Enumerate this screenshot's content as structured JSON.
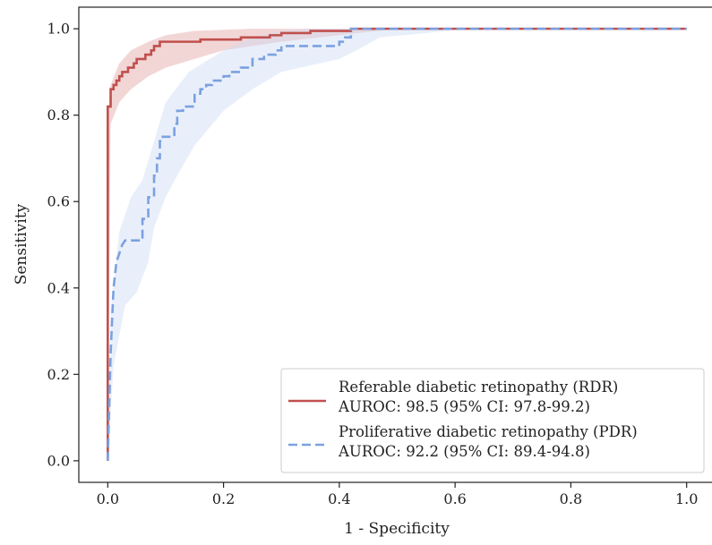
{
  "chart_data": {
    "type": "line",
    "xlabel": "1 - Specificity",
    "ylabel": "Sensitivity",
    "xlim": [
      -0.05,
      1.05
    ],
    "ylim": [
      -0.05,
      1.05
    ],
    "xticks": [
      "0.0",
      "0.2",
      "0.4",
      "0.6",
      "0.8",
      "1.0"
    ],
    "yticks": [
      "0.0",
      "0.2",
      "0.4",
      "0.6",
      "0.8",
      "1.0"
    ],
    "grid": false,
    "legend_position": "lower-right",
    "series": [
      {
        "name": "Referable diabetic retinopathy (RDR)",
        "name_line2": "AUROC: 98.5 (95% CI: 97.8-99.2)",
        "color": "#c0504d",
        "band_color": "#e3a5a5",
        "style": "solid",
        "points": [
          [
            0.0,
            0.0
          ],
          [
            0.0,
            0.82
          ],
          [
            0.005,
            0.82
          ],
          [
            0.005,
            0.86
          ],
          [
            0.01,
            0.86
          ],
          [
            0.01,
            0.87
          ],
          [
            0.015,
            0.87
          ],
          [
            0.015,
            0.88
          ],
          [
            0.02,
            0.88
          ],
          [
            0.02,
            0.89
          ],
          [
            0.025,
            0.89
          ],
          [
            0.025,
            0.9
          ],
          [
            0.035,
            0.9
          ],
          [
            0.035,
            0.91
          ],
          [
            0.045,
            0.91
          ],
          [
            0.045,
            0.92
          ],
          [
            0.05,
            0.92
          ],
          [
            0.05,
            0.93
          ],
          [
            0.065,
            0.93
          ],
          [
            0.065,
            0.94
          ],
          [
            0.075,
            0.94
          ],
          [
            0.075,
            0.95
          ],
          [
            0.08,
            0.95
          ],
          [
            0.08,
            0.96
          ],
          [
            0.09,
            0.96
          ],
          [
            0.09,
            0.97
          ],
          [
            0.16,
            0.97
          ],
          [
            0.16,
            0.975
          ],
          [
            0.23,
            0.975
          ],
          [
            0.23,
            0.98
          ],
          [
            0.28,
            0.98
          ],
          [
            0.28,
            0.985
          ],
          [
            0.3,
            0.985
          ],
          [
            0.3,
            0.99
          ],
          [
            0.35,
            0.99
          ],
          [
            0.35,
            0.995
          ],
          [
            0.42,
            0.995
          ],
          [
            0.42,
            1.0
          ],
          [
            1.0,
            1.0
          ]
        ],
        "band_upper": [
          [
            0.0,
            0.79
          ],
          [
            0.005,
            0.87
          ],
          [
            0.02,
            0.92
          ],
          [
            0.04,
            0.95
          ],
          [
            0.07,
            0.97
          ],
          [
            0.1,
            0.985
          ],
          [
            0.15,
            0.995
          ],
          [
            0.25,
            1.0
          ],
          [
            1.0,
            1.0
          ]
        ],
        "band_lower": [
          [
            0.0,
            0.0
          ],
          [
            0.005,
            0.78
          ],
          [
            0.02,
            0.83
          ],
          [
            0.04,
            0.86
          ],
          [
            0.07,
            0.89
          ],
          [
            0.1,
            0.91
          ],
          [
            0.15,
            0.93
          ],
          [
            0.2,
            0.95
          ],
          [
            0.3,
            0.97
          ],
          [
            0.4,
            0.985
          ],
          [
            0.5,
            1.0
          ],
          [
            1.0,
            1.0
          ]
        ]
      },
      {
        "name": "Proliferative diabetic retinopathy (PDR)",
        "name_line2": "AUROC: 92.2 (95% CI: 89.4-94.8)",
        "color": "#7ba1e0",
        "band_color": "#cfdcf5",
        "style": "dashed",
        "points": [
          [
            0.0,
            0.0
          ],
          [
            0.005,
            0.25
          ],
          [
            0.01,
            0.4
          ],
          [
            0.015,
            0.46
          ],
          [
            0.02,
            0.48
          ],
          [
            0.025,
            0.5
          ],
          [
            0.03,
            0.51
          ],
          [
            0.06,
            0.51
          ],
          [
            0.06,
            0.56
          ],
          [
            0.07,
            0.56
          ],
          [
            0.07,
            0.61
          ],
          [
            0.08,
            0.61
          ],
          [
            0.08,
            0.66
          ],
          [
            0.085,
            0.66
          ],
          [
            0.085,
            0.7
          ],
          [
            0.09,
            0.7
          ],
          [
            0.09,
            0.74
          ],
          [
            0.095,
            0.74
          ],
          [
            0.095,
            0.75
          ],
          [
            0.115,
            0.75
          ],
          [
            0.115,
            0.78
          ],
          [
            0.12,
            0.78
          ],
          [
            0.12,
            0.81
          ],
          [
            0.13,
            0.81
          ],
          [
            0.13,
            0.82
          ],
          [
            0.15,
            0.82
          ],
          [
            0.15,
            0.85
          ],
          [
            0.16,
            0.85
          ],
          [
            0.16,
            0.86
          ],
          [
            0.17,
            0.86
          ],
          [
            0.17,
            0.87
          ],
          [
            0.18,
            0.87
          ],
          [
            0.18,
            0.88
          ],
          [
            0.2,
            0.88
          ],
          [
            0.2,
            0.89
          ],
          [
            0.21,
            0.89
          ],
          [
            0.21,
            0.9
          ],
          [
            0.23,
            0.9
          ],
          [
            0.23,
            0.91
          ],
          [
            0.25,
            0.91
          ],
          [
            0.25,
            0.93
          ],
          [
            0.27,
            0.93
          ],
          [
            0.27,
            0.94
          ],
          [
            0.29,
            0.94
          ],
          [
            0.29,
            0.95
          ],
          [
            0.3,
            0.95
          ],
          [
            0.3,
            0.96
          ],
          [
            0.4,
            0.96
          ],
          [
            0.4,
            0.97
          ],
          [
            0.41,
            0.97
          ],
          [
            0.41,
            0.98
          ],
          [
            0.42,
            0.98
          ],
          [
            0.42,
            1.0
          ],
          [
            1.0,
            1.0
          ]
        ],
        "band_upper": [
          [
            0.0,
            0.0
          ],
          [
            0.005,
            0.35
          ],
          [
            0.02,
            0.53
          ],
          [
            0.04,
            0.61
          ],
          [
            0.06,
            0.65
          ],
          [
            0.08,
            0.74
          ],
          [
            0.1,
            0.83
          ],
          [
            0.14,
            0.9
          ],
          [
            0.2,
            0.95
          ],
          [
            0.25,
            0.98
          ],
          [
            0.3,
            0.995
          ],
          [
            0.35,
            1.0
          ],
          [
            1.0,
            1.0
          ]
        ],
        "band_lower": [
          [
            0.0,
            0.0
          ],
          [
            0.01,
            0.22
          ],
          [
            0.03,
            0.36
          ],
          [
            0.05,
            0.39
          ],
          [
            0.07,
            0.46
          ],
          [
            0.08,
            0.54
          ],
          [
            0.1,
            0.61
          ],
          [
            0.12,
            0.66
          ],
          [
            0.15,
            0.73
          ],
          [
            0.2,
            0.81
          ],
          [
            0.25,
            0.86
          ],
          [
            0.3,
            0.9
          ],
          [
            0.4,
            0.93
          ],
          [
            0.43,
            0.95
          ],
          [
            0.47,
            0.98
          ],
          [
            0.55,
            0.99
          ],
          [
            0.62,
            1.0
          ],
          [
            1.0,
            1.0
          ]
        ]
      }
    ]
  }
}
